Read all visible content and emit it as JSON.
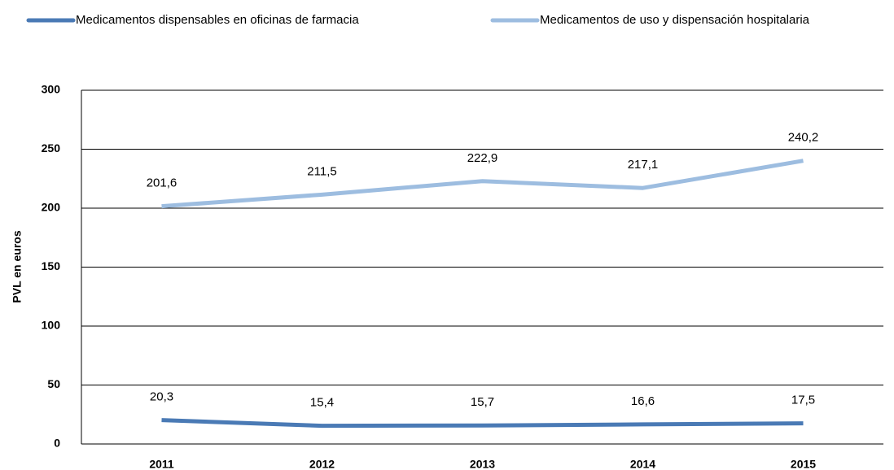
{
  "chart_data": {
    "type": "line",
    "y_label": "PVL en euros",
    "categories": [
      "2011",
      "2012",
      "2013",
      "2014",
      "2015"
    ],
    "series": [
      {
        "name": "Medicamentos dispensables en oficinas de farmacia",
        "color": "#4a7ab5",
        "values": [
          20.3,
          15.4,
          15.7,
          16.6,
          17.5
        ],
        "value_labels": [
          "20,3",
          "15,4",
          "15,7",
          "16,6",
          "17,5"
        ]
      },
      {
        "name": "Medicamentos  de uso y dispensación hospitalaria",
        "color": "#9dbde0",
        "values": [
          201.6,
          211.5,
          222.9,
          217.1,
          240.2
        ],
        "value_labels": [
          "201,6",
          "211,5",
          "222,9",
          "217,1",
          "240,2"
        ]
      }
    ],
    "ylim": [
      0,
      300
    ],
    "yticks": [
      0,
      50,
      100,
      150,
      200,
      250,
      300
    ],
    "grid": true,
    "legend": "top"
  }
}
